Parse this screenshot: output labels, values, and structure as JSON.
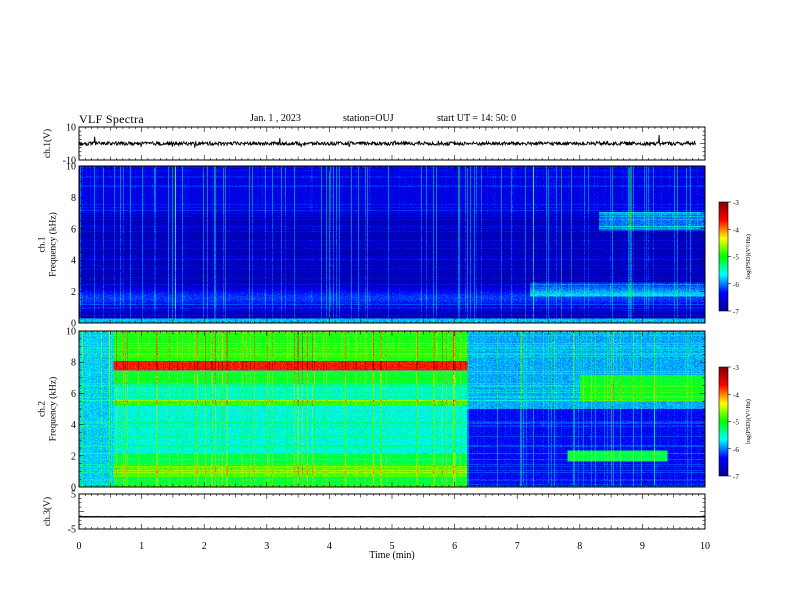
{
  "header": {
    "title": "VLF Spectra",
    "date": "Jan. 1 , 2023",
    "station": "station=OUJ",
    "start_ut": "start UT =  14: 50: 0"
  },
  "chart_data": [
    {
      "type": "line",
      "panel": "ch1-waveform",
      "ylabel": "ch.1(V)",
      "ylim": [
        -10,
        10
      ],
      "yticks": [
        "10",
        "-10"
      ],
      "xlim": [
        0,
        10
      ],
      "baseline": 0,
      "description_series": [
        {
          "values_range": [
            -1.5,
            1.5
          ]
        }
      ]
    },
    {
      "type": "heatmap",
      "panel": "ch1-spectrogram",
      "ylabel": "ch.1\nFrequency (kHz)",
      "ylim": [
        0,
        10
      ],
      "yticks": [
        "0",
        "2",
        "4",
        "6",
        "8",
        "10"
      ],
      "xlim": [
        0,
        10
      ],
      "colorbar": {
        "label": "log(PSD)(V²/Hz)",
        "range": [
          -7,
          -3
        ],
        "ticks": [
          "-3",
          "-4",
          "-5",
          "-6",
          "-7"
        ]
      }
    },
    {
      "type": "heatmap",
      "panel": "ch2-spectrogram",
      "ylabel": "ch.2\nFrequency (kHz)",
      "ylim": [
        0,
        10
      ],
      "yticks": [
        "0",
        "2",
        "4",
        "6",
        "8",
        "10"
      ],
      "xlim": [
        0,
        10
      ],
      "colorbar": {
        "label": "log(PSD)(V²/Hz)",
        "range": [
          -7,
          -3
        ],
        "ticks": [
          "-3",
          "-4",
          "-5",
          "-6",
          "-7"
        ]
      }
    },
    {
      "type": "line",
      "panel": "ch3-waveform",
      "ylabel": "ch.3(V)",
      "ylim": [
        -5,
        5
      ],
      "yticks": [
        "5",
        "-5"
      ],
      "xlim": [
        0,
        10
      ],
      "xticks": [
        "0",
        "1",
        "2",
        "3",
        "4",
        "5",
        "6",
        "7",
        "8",
        "9",
        "10"
      ],
      "xlabel": "Time (min)",
      "baseline": -1.5
    }
  ],
  "colors": {
    "background": "#000080",
    "colormap": [
      "#00008f",
      "#0000ff",
      "#00ffff",
      "#00ff00",
      "#ffff00",
      "#ff0000",
      "#800000"
    ]
  }
}
